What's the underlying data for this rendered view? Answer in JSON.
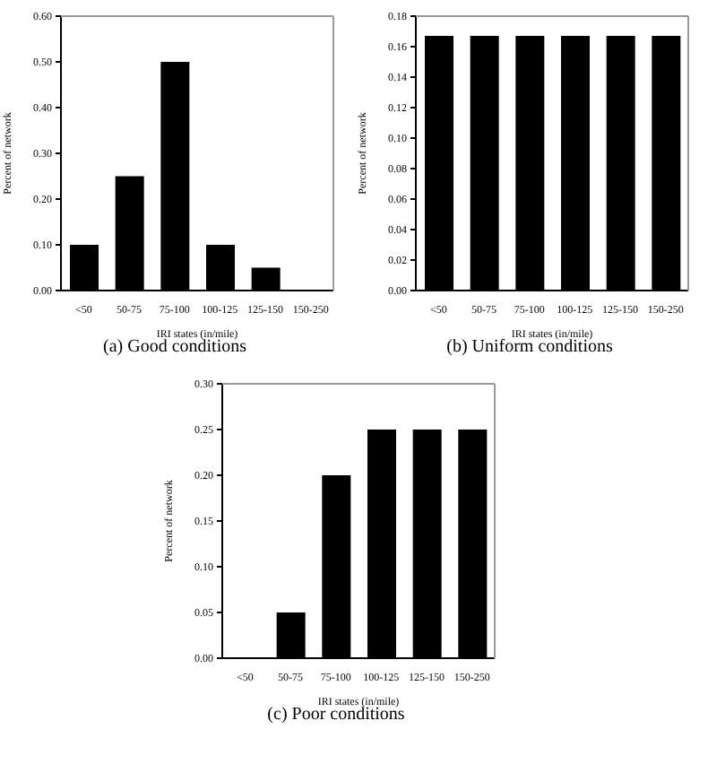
{
  "chart_data": [
    {
      "type": "bar",
      "title": "(a)   Good conditions",
      "xlabel": "IRI states (in/mile)",
      "ylabel": "Percent of network",
      "categories": [
        "<50",
        "50-75",
        "75-100",
        "100-125",
        "125-150",
        "150-250"
      ],
      "values": [
        0.1,
        0.25,
        0.5,
        0.1,
        0.05,
        0
      ],
      "color": "#000000",
      "ylim": [
        0,
        0.6
      ],
      "yticks": [
        {
          "value": 0,
          "label": "0.00"
        },
        {
          "value": 0.1,
          "label": "0.10"
        },
        {
          "value": 0.2,
          "label": "0.20"
        },
        {
          "value": 0.3,
          "label": "0.30"
        },
        {
          "value": 0.4,
          "label": "0.40"
        },
        {
          "value": 0.5,
          "label": "0.50"
        },
        {
          "value": 0.6,
          "label": "0.60"
        }
      ],
      "grid": false,
      "legend": false
    },
    {
      "type": "bar",
      "title": "(b)   Uniform conditions",
      "xlabel": "IRI states (in/mile)",
      "ylabel": "Percent of network",
      "categories": [
        "<50",
        "50-75",
        "75-100",
        "100-125",
        "125-150",
        "150-250"
      ],
      "values": [
        0.167,
        0.167,
        0.167,
        0.167,
        0.167,
        0.167
      ],
      "color": "#000000",
      "ylim": [
        0,
        0.18
      ],
      "yticks": [
        {
          "value": 0,
          "label": "0.00"
        },
        {
          "value": 0.02,
          "label": "0.02"
        },
        {
          "value": 0.04,
          "label": "0.04"
        },
        {
          "value": 0.06,
          "label": "0.06"
        },
        {
          "value": 0.08,
          "label": "0.08"
        },
        {
          "value": 0.1,
          "label": "0.10"
        },
        {
          "value": 0.12,
          "label": "0.12"
        },
        {
          "value": 0.14,
          "label": "0.14"
        },
        {
          "value": 0.16,
          "label": "0.16"
        },
        {
          "value": 0.18,
          "label": "0.18"
        }
      ],
      "grid": false,
      "legend": false
    },
    {
      "type": "bar",
      "title": "(c)   Poor conditions",
      "xlabel": "IRI states (in/mile)",
      "ylabel": "Percent of network",
      "categories": [
        "<50",
        "50-75",
        "75-100",
        "100-125",
        "125-150",
        "150-250"
      ],
      "values": [
        0,
        0.05,
        0.2,
        0.25,
        0.25,
        0.25
      ],
      "color": "#000000",
      "ylim": [
        0,
        0.3
      ],
      "yticks": [
        {
          "value": 0,
          "label": "0.00"
        },
        {
          "value": 0.05,
          "label": "0.05"
        },
        {
          "value": 0.1,
          "label": "0.10"
        },
        {
          "value": 0.15,
          "label": "0.15"
        },
        {
          "value": 0.2,
          "label": "0.20"
        },
        {
          "value": 0.25,
          "label": "0.25"
        },
        {
          "value": 0.3,
          "label": "0.30"
        }
      ],
      "grid": false,
      "legend": false
    }
  ]
}
